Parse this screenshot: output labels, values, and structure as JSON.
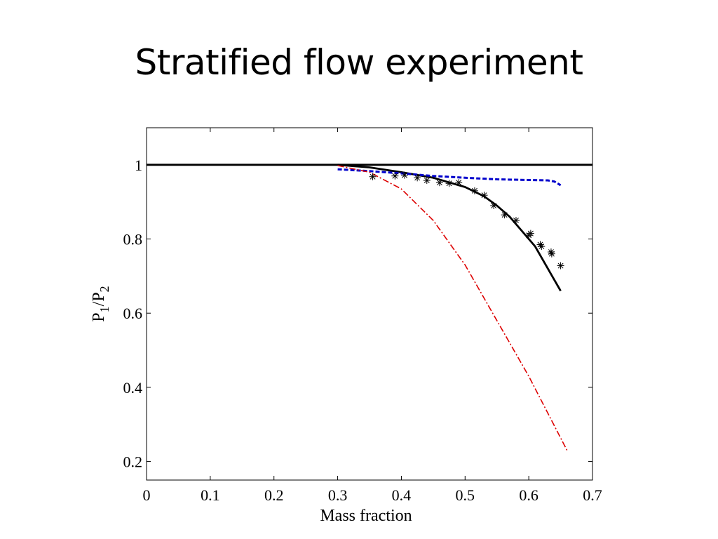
{
  "slide": {
    "title": "Stratified flow experiment"
  },
  "chart_data": {
    "type": "line",
    "title": "",
    "xlabel": "Mass fraction",
    "ylabel": {
      "base1": "P",
      "sub1": "1",
      "slash": "/",
      "base2": "P",
      "sub2": "2"
    },
    "xlim": [
      0,
      0.7
    ],
    "ylim": [
      0.15,
      1.1
    ],
    "xticks": [
      0,
      0.1,
      0.2,
      0.3,
      0.4,
      0.5,
      0.6,
      0.7
    ],
    "xtick_labels": [
      "0",
      "0.1",
      "0.2",
      "0.3",
      "0.4",
      "0.5",
      "0.6",
      "0.7"
    ],
    "yticks": [
      0.2,
      0.4,
      0.6,
      0.8,
      1.0
    ],
    "ytick_labels": [
      "0.2",
      "0.4",
      "0.6",
      "0.8",
      "1"
    ],
    "grid": false,
    "legend": null,
    "colors": {
      "black": "#000000",
      "blue": "#0000cc",
      "red": "#dd0000"
    },
    "series": [
      {
        "style": "solid",
        "color": "black",
        "x": [
          0,
          0.7
        ],
        "y": [
          1.0,
          1.0
        ]
      },
      {
        "style": "solid",
        "color": "black",
        "x": [
          0.3,
          0.35,
          0.4,
          0.45,
          0.5,
          0.53,
          0.55,
          0.57,
          0.59,
          0.61,
          0.63,
          0.64,
          0.65
        ],
        "y": [
          1.0,
          0.993,
          0.98,
          0.965,
          0.94,
          0.915,
          0.89,
          0.86,
          0.82,
          0.78,
          0.72,
          0.69,
          0.66
        ]
      },
      {
        "style": "dashed",
        "color": "blue",
        "x": [
          0.3,
          0.35,
          0.4,
          0.45,
          0.5,
          0.55,
          0.6,
          0.63,
          0.64,
          0.65
        ],
        "y": [
          0.988,
          0.983,
          0.977,
          0.97,
          0.965,
          0.961,
          0.959,
          0.958,
          0.955,
          0.945
        ]
      },
      {
        "style": "dashdot",
        "color": "red",
        "x": [
          0.3,
          0.35,
          0.4,
          0.45,
          0.5,
          0.55,
          0.6,
          0.63,
          0.66
        ],
        "y": [
          0.998,
          0.98,
          0.935,
          0.85,
          0.73,
          0.58,
          0.43,
          0.33,
          0.23
        ]
      },
      {
        "style": "markers",
        "marker": "asterisk",
        "color": "black",
        "x": [
          0.355,
          0.39,
          0.405,
          0.425,
          0.44,
          0.46,
          0.475,
          0.49,
          0.515,
          0.53,
          0.545,
          0.562,
          0.58,
          0.6,
          0.603,
          0.618,
          0.62,
          0.635,
          0.636,
          0.65
        ],
        "y": [
          0.968,
          0.97,
          0.972,
          0.965,
          0.958,
          0.952,
          0.95,
          0.952,
          0.93,
          0.918,
          0.89,
          0.865,
          0.85,
          0.81,
          0.815,
          0.785,
          0.78,
          0.765,
          0.76,
          0.728
        ]
      }
    ]
  }
}
